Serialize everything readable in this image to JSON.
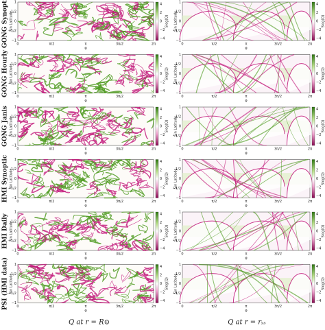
{
  "row_labels": [
    "GONG Synoptic",
    "GONG Hourly",
    "GONG Janis",
    "HMI Synoptic",
    "HMI Daily",
    "PSI (HMI data)"
  ],
  "panel": {
    "y_ticks": [
      "1",
      "1/2",
      "0",
      "−1/2",
      "−1"
    ],
    "x_ticks": [
      "0",
      "π/2",
      "π",
      "3π/2",
      "2π"
    ],
    "x_label": "φ",
    "y_label": "Sin Latitude",
    "colorbar_label": "Slog(Q)",
    "colorbar_ticks": [
      "4",
      "2",
      "0",
      "−2",
      "−4"
    ]
  },
  "column_captions": [
    "Q at r = R⊙",
    "Q at r = rₛₛ"
  ]
}
